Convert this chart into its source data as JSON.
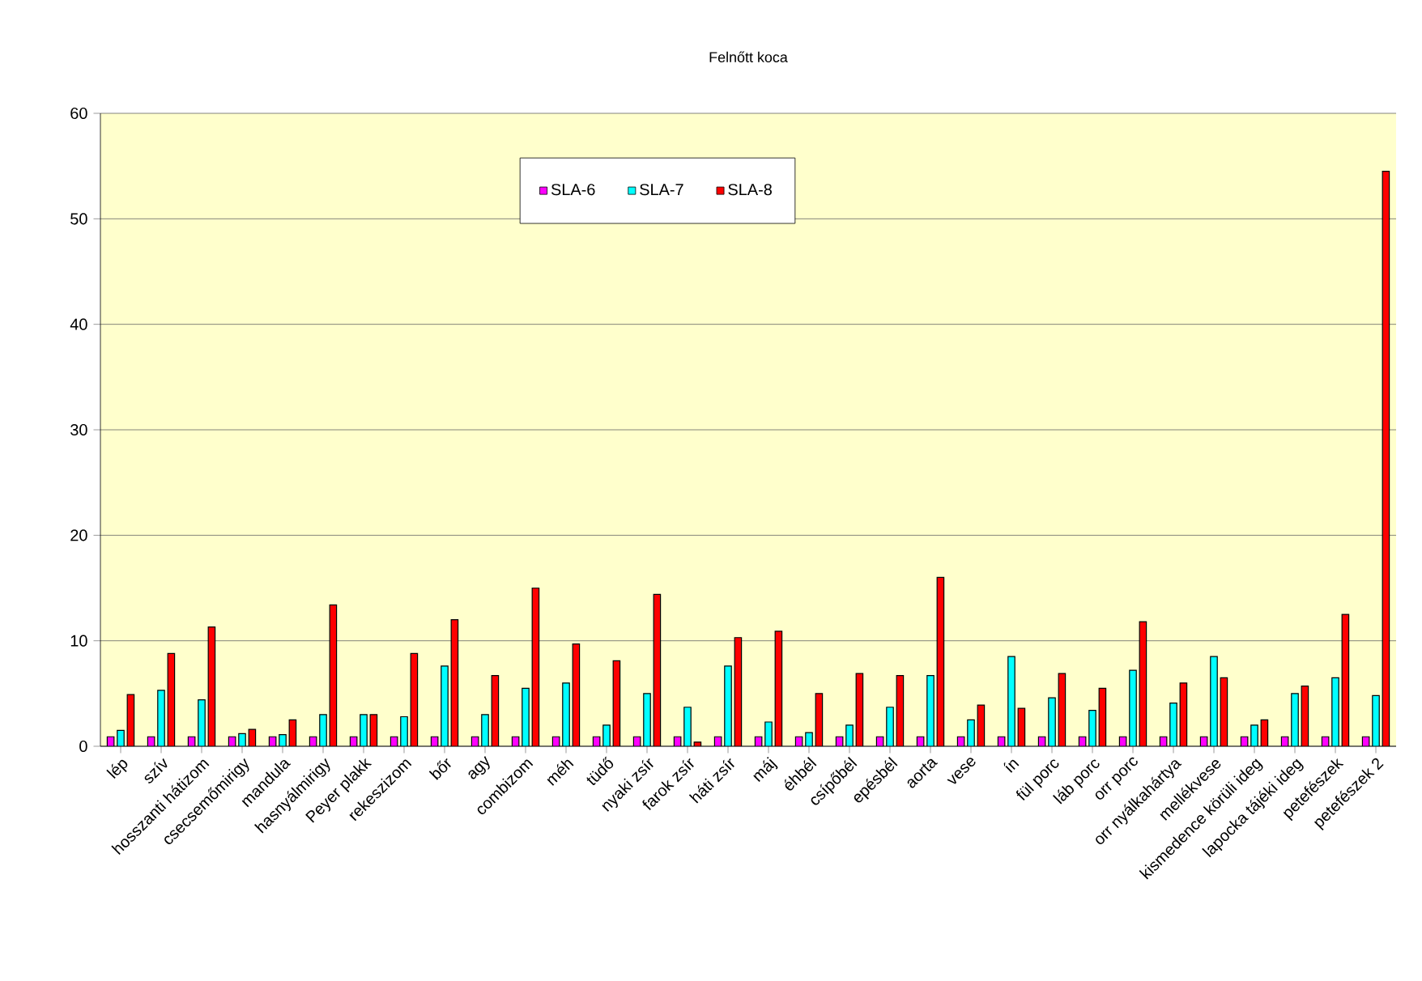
{
  "chart_data": {
    "type": "bar",
    "title": "Felnőtt koca",
    "categories": [
      "lép",
      "szív",
      "hosszanti hátizom",
      "csecsemőmirigy",
      "mandula",
      "hasnyálmirigy",
      "Peyer plakk",
      "rekeszizom",
      "bőr",
      "agy",
      "combizom",
      "méh",
      "tüdő",
      "nyaki zsír",
      "farok zsír",
      "háti zsír",
      "máj",
      "éhbél",
      "csípőbél",
      "epésbél",
      "aorta",
      "vese",
      "ín",
      "fül porc",
      "láb porc",
      "orr porc",
      "orr nyálkahártya",
      "mellékvese",
      "kismedence körüli ideg",
      "lapocka tájéki ideg",
      "petefészek",
      "petefészek 2"
    ],
    "series": [
      {
        "name": "SLA-6",
        "color": "#ff00ff",
        "values": [
          0.9,
          0.9,
          0.9,
          0.9,
          0.9,
          0.9,
          0.9,
          0.9,
          0.9,
          0.9,
          0.9,
          0.9,
          0.9,
          0.9,
          0.9,
          0.9,
          0.9,
          0.9,
          0.9,
          0.9,
          0.9,
          0.9,
          0.9,
          0.9,
          0.9,
          0.9,
          0.9,
          0.9,
          0.9,
          0.9,
          0.9,
          0.9
        ]
      },
      {
        "name": "SLA-7",
        "color": "#00ffff",
        "values": [
          1.5,
          5.3,
          4.4,
          1.2,
          1.1,
          3.0,
          3.0,
          2.8,
          7.6,
          3.0,
          5.5,
          6.0,
          2.0,
          5.0,
          3.7,
          7.6,
          2.3,
          1.3,
          2.0,
          3.7,
          6.7,
          2.5,
          8.5,
          4.6,
          3.4,
          7.2,
          4.1,
          8.5,
          2.0,
          5.0,
          6.5,
          4.8
        ]
      },
      {
        "name": "SLA-8",
        "color": "#ff0000",
        "values": [
          4.9,
          8.8,
          11.3,
          1.6,
          2.5,
          13.4,
          3.0,
          8.8,
          12.0,
          6.7,
          15.0,
          9.7,
          8.1,
          14.4,
          0.4,
          10.3,
          10.9,
          5.0,
          6.9,
          6.7,
          16.0,
          3.9,
          3.6,
          6.9,
          5.5,
          11.8,
          6.0,
          6.5,
          2.5,
          5.7,
          12.5,
          54.5
        ]
      }
    ],
    "ylim": [
      0,
      60
    ],
    "yticks": [
      0,
      10,
      20,
      30,
      40,
      50,
      60
    ],
    "grid": "y",
    "legend": "top"
  }
}
